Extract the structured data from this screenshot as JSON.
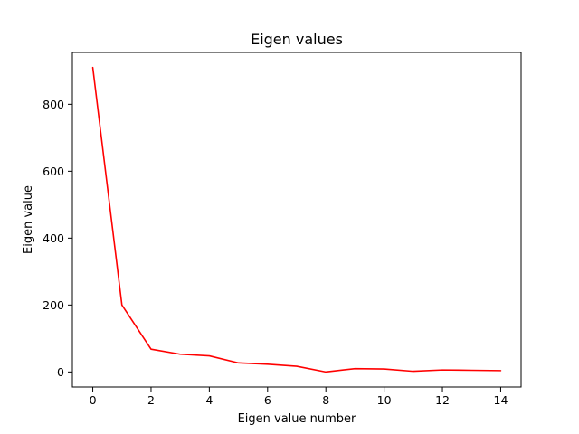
{
  "chart_data": {
    "type": "line",
    "title": "Eigen values",
    "xlabel": "Eigen value number",
    "ylabel": "Eigen value",
    "xlim": [
      -0.7,
      14.7
    ],
    "ylim": [
      -45,
      955
    ],
    "xticks": [
      0,
      2,
      4,
      6,
      8,
      10,
      12,
      14
    ],
    "yticks": [
      0,
      200,
      400,
      600,
      800
    ],
    "grid": false,
    "legend": "none",
    "series": [
      {
        "color": "#ff0000",
        "x": [
          0,
          1,
          2,
          3,
          4,
          5,
          6,
          7,
          8,
          9,
          10,
          11,
          12,
          13,
          14
        ],
        "y": [
          910,
          200,
          68,
          53,
          48,
          27,
          23,
          17,
          0,
          10,
          9,
          2,
          6,
          5,
          4
        ]
      }
    ]
  }
}
